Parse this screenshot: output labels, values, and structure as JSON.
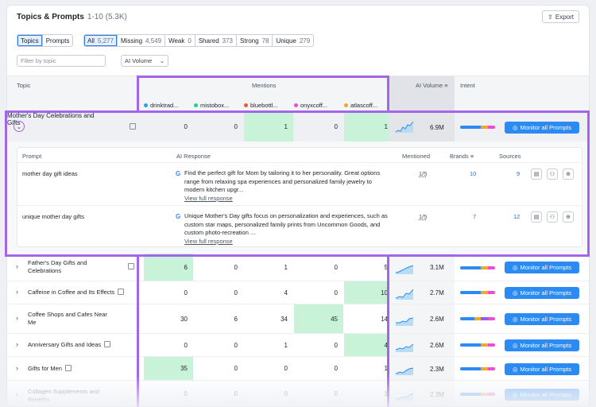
{
  "header": {
    "title": "Topics & Prompts",
    "count": "1-10 (5.3K)",
    "export_label": "Export"
  },
  "view_toggle": [
    {
      "label": "Topics"
    },
    {
      "label": "Prompts"
    }
  ],
  "filters": [
    {
      "label": "All",
      "count": "5,277"
    },
    {
      "label": "Missing",
      "count": "4,549"
    },
    {
      "label": "Weak",
      "count": "0"
    },
    {
      "label": "Shared",
      "count": "373"
    },
    {
      "label": "Strong",
      "count": "78"
    },
    {
      "label": "Unique",
      "count": "279"
    }
  ],
  "topic_filter": {
    "placeholder": "Filter by topic"
  },
  "ai_volume_dropdown": {
    "label": "AI Volume"
  },
  "table": {
    "col_topic": "Topic",
    "col_mentions": "Mentions",
    "col_ai_volume": "AI Volume",
    "col_intent": "Intent",
    "brands": [
      {
        "name": "drinktrad...",
        "color": "#1aa7e6"
      },
      {
        "name": "mistobox...",
        "color": "#2ecb8a"
      },
      {
        "name": "bluebottl...",
        "color": "#f05a28"
      },
      {
        "name": "onyxcoff...",
        "color": "#e94fd0"
      },
      {
        "name": "atlascoff...",
        "color": "#f5a623"
      }
    ],
    "monitor_label": "Monitor all Prompts",
    "expanded_row": {
      "topic": "Mother's Day Celebrations and Gifts",
      "values": [
        "0",
        "0",
        "1",
        "0",
        "1"
      ],
      "highlight": [
        false,
        false,
        true,
        false,
        true
      ],
      "volume": "6.9M",
      "sub_headers": {
        "prompt": "Prompt",
        "ai_response": "AI Response",
        "mentioned": "Mentioned",
        "brands": "Brands",
        "sources": "Sources"
      },
      "prompts": [
        {
          "prompt": "mother day gift ideas",
          "response": "Find the perfect gift for Mom by tailoring it to her personality. Great options range from relaxing spa experiences and personalized family jewelry to modern kitchen upgr...",
          "view_label": "View full response",
          "mentioned": "1/5",
          "brands": "10",
          "sources": "9"
        },
        {
          "prompt": "unique mother day gifts",
          "response": "Unique Mother's Day gifts focus on personalization and experiences, such as custom star maps, personalized family prints from Uncommon Goods, and custom photo-recreation ...",
          "view_label": "View full response",
          "mentioned": "1/5",
          "brands": "7",
          "sources": "12"
        }
      ]
    },
    "rows": [
      {
        "topic": "Father's Day Gifts and Celebrations",
        "values": [
          "6",
          "0",
          "1",
          "0",
          "5"
        ],
        "highlight": [
          true,
          false,
          false,
          false,
          false
        ],
        "volume": "3.1M"
      },
      {
        "topic": "Caffeine in Coffee and Its Effects",
        "values": [
          "0",
          "0",
          "4",
          "0",
          "10"
        ],
        "highlight": [
          false,
          false,
          false,
          false,
          true
        ],
        "volume": "2.7M"
      },
      {
        "topic": "Coffee Shops and Cafes Near Me",
        "values": [
          "30",
          "6",
          "34",
          "45",
          "14"
        ],
        "highlight": [
          false,
          false,
          false,
          true,
          false
        ],
        "volume": "2.6M"
      },
      {
        "topic": "Anniversary Gifts and Ideas",
        "values": [
          "0",
          "0",
          "1",
          "0",
          "4"
        ],
        "highlight": [
          false,
          false,
          false,
          false,
          true
        ],
        "volume": "2.6M"
      },
      {
        "topic": "Gifts for Men",
        "values": [
          "35",
          "0",
          "0",
          "0",
          "1"
        ],
        "highlight": [
          true,
          false,
          false,
          false,
          false
        ],
        "volume": "2.3M"
      },
      {
        "topic": "Collagen Supplements and Benefits",
        "values": [
          "0",
          "0",
          "0",
          "0",
          "1"
        ],
        "highlight": [
          false,
          false,
          false,
          false,
          false
        ],
        "volume": "2.3M"
      }
    ]
  }
}
